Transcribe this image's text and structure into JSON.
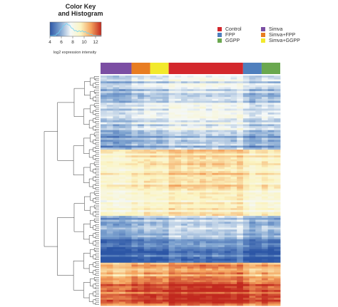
{
  "color_key": {
    "title_line1": "Color Key",
    "title_line2": "and Histogram",
    "axis_label": "log2 expression intensity",
    "ticks": [
      "4",
      "6",
      "8",
      "10",
      "12"
    ],
    "colors": [
      "#2c56a6",
      "#7ea3d0",
      "#f4f8f8",
      "#fbf4c1",
      "#f4a35e",
      "#c2291f"
    ]
  },
  "legend": [
    {
      "name": "Control",
      "color": "#d3272c"
    },
    {
      "name": "FPP",
      "color": "#4f7fbd"
    },
    {
      "name": "GGPP",
      "color": "#6aa84f"
    },
    {
      "name": "Simva",
      "color": "#7b4ea3"
    },
    {
      "name": "Simva+FPP",
      "color": "#e87d22"
    },
    {
      "name": "Simva+GGPP",
      "color": "#f2e92c"
    }
  ],
  "chart_data": {
    "type": "heatmap",
    "value_range": [
      4,
      13
    ],
    "column_groups": [
      {
        "name": "Simva",
        "columns": 5
      },
      {
        "name": "Simva+FPP",
        "columns": 3
      },
      {
        "name": "Simva+GGPP",
        "columns": 3
      },
      {
        "name": "Control",
        "columns": 12
      },
      {
        "name": "FPP",
        "columns": 3
      },
      {
        "name": "GGPP",
        "columns": 3
      }
    ],
    "row_blocks": [
      {
        "rows": 28,
        "level": 7.0
      },
      {
        "rows": 10,
        "level": 6.0
      },
      {
        "rows": 20,
        "level": 9.6
      },
      {
        "rows": 14,
        "level": 8.9
      },
      {
        "rows": 12,
        "level": 6.2
      },
      {
        "rows": 12,
        "level": 4.6
      },
      {
        "rows": 10,
        "level": 11.0
      },
      {
        "rows": 12,
        "level": 12.3
      }
    ],
    "dendrogram": "row clustering tree on left"
  }
}
